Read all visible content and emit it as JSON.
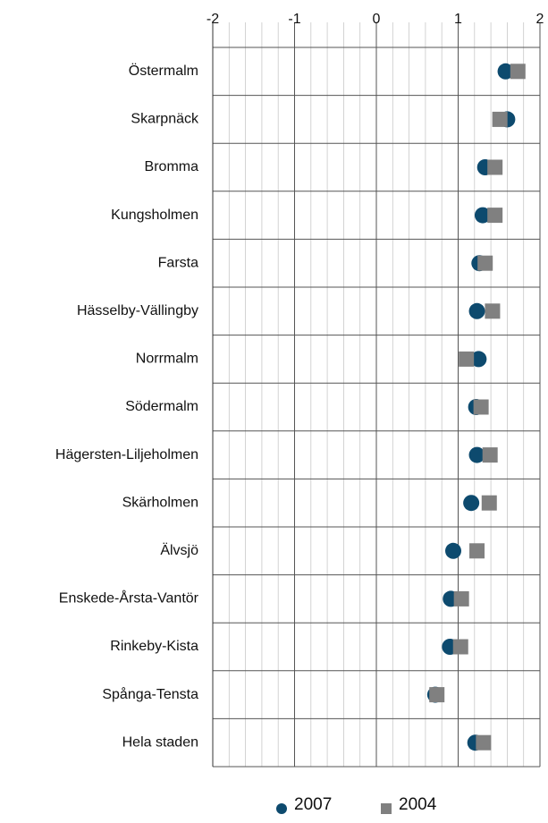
{
  "chart_data": {
    "type": "dot",
    "categories": [
      "Östermalm",
      "Skarpnäck",
      "Bromma",
      "Kungsholmen",
      "Farsta",
      "Hässelby-Vällingby",
      "Norrmalm",
      "Södermalm",
      "Hägersten-Liljeholmen",
      "Skärholmen",
      "Älvsjö",
      "Enskede-Årsta-Vantör",
      "Rinkeby-Kista",
      "Spånga-Tensta",
      "Hela staden"
    ],
    "series": [
      {
        "name": "2007",
        "color": "#0d4a6e",
        "marker": "circle",
        "values": [
          1.58,
          1.6,
          1.33,
          1.3,
          1.26,
          1.23,
          1.25,
          1.22,
          1.23,
          1.16,
          0.94,
          0.91,
          0.9,
          0.72,
          1.21
        ]
      },
      {
        "name": "2004",
        "color": "#808080",
        "marker": "square",
        "values": [
          1.73,
          1.51,
          1.45,
          1.45,
          1.33,
          1.42,
          1.1,
          1.28,
          1.39,
          1.38,
          1.23,
          1.04,
          1.03,
          0.74,
          1.31
        ]
      }
    ],
    "xlim": [
      -2,
      2
    ],
    "xticks": [
      -2,
      -1,
      0,
      1,
      2
    ],
    "grid": true,
    "minor_grid": true,
    "legend": "bottom"
  }
}
